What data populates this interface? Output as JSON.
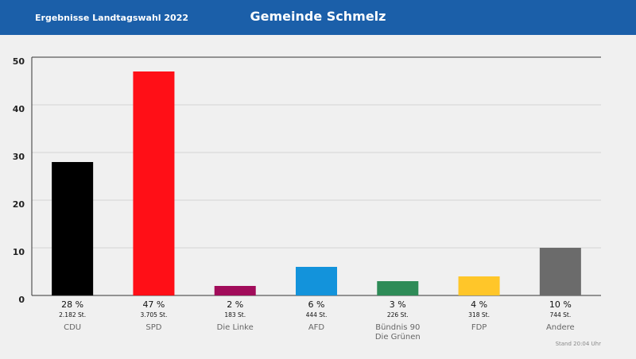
{
  "header": {
    "subtitle": "Ergebnisse Landtagswahl 2022",
    "title": "Gemeinde Schmelz"
  },
  "chart_data": {
    "type": "bar",
    "categories": [
      "CDU",
      "SPD",
      "Die Linke",
      "AFD",
      "Bündnis 90\nDie Grünen",
      "FDP",
      "Andere"
    ],
    "values": [
      28,
      47,
      2,
      6,
      3,
      4,
      10
    ],
    "value_labels": [
      "28 %",
      "47 %",
      "2 %",
      "6 %",
      "3 %",
      "4 %",
      "10 %"
    ],
    "vote_labels": [
      "2.182 St.",
      "3.705 St.",
      "183 St.",
      "444 St.",
      "226 St.",
      "318 St.",
      "744 St."
    ],
    "colors": [
      "#000000",
      "#ff0f17",
      "#a10c5a",
      "#1393db",
      "#2e8b57",
      "#ffc629",
      "#6b6b6b"
    ],
    "ylim": [
      0,
      50
    ],
    "yticks": [
      0,
      10,
      20,
      30,
      40,
      50
    ],
    "grid": true
  },
  "footer": {
    "timestamp": "Stand 20:04 Uhr"
  }
}
